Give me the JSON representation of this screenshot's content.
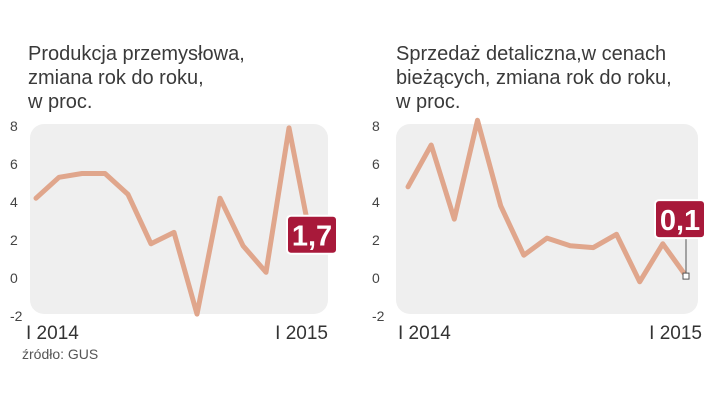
{
  "chart_data": [
    {
      "type": "line",
      "title": "Produkcja przemysłowa,\nzmiana rok do roku,\nw proc.",
      "ylim": [
        -2,
        8
      ],
      "yticks": [
        "8",
        "6",
        "4",
        "2",
        "0",
        "-2"
      ],
      "grid": false,
      "x_labels": [
        "I 2014",
        "I 2015"
      ],
      "values": [
        4.2,
        5.3,
        5.5,
        5.5,
        4.4,
        1.8,
        2.4,
        -1.9,
        4.2,
        1.7,
        0.3,
        7.9,
        1.7
      ],
      "last_value_label": "1,7",
      "line_color": "#e0a68c",
      "panel_color": "#efefef",
      "badge_color": "#a8193a"
    },
    {
      "type": "line",
      "title": "Sprzedaż detaliczna,w cenach\nbieżących, zmiana rok do roku,\nw proc.",
      "ylim": [
        -2,
        8
      ],
      "yticks": [
        "8",
        "6",
        "4",
        "2",
        "0",
        "-2"
      ],
      "grid": false,
      "x_labels": [
        "I 2014",
        "I 2015"
      ],
      "values": [
        4.8,
        7.0,
        3.1,
        8.3,
        3.8,
        1.2,
        2.1,
        1.7,
        1.6,
        2.3,
        -0.2,
        1.8,
        0.1
      ],
      "last_value_label": "0,1",
      "line_color": "#e0a68c",
      "panel_color": "#efefef",
      "badge_color": "#a8193a"
    }
  ],
  "source": "źródło: GUS"
}
